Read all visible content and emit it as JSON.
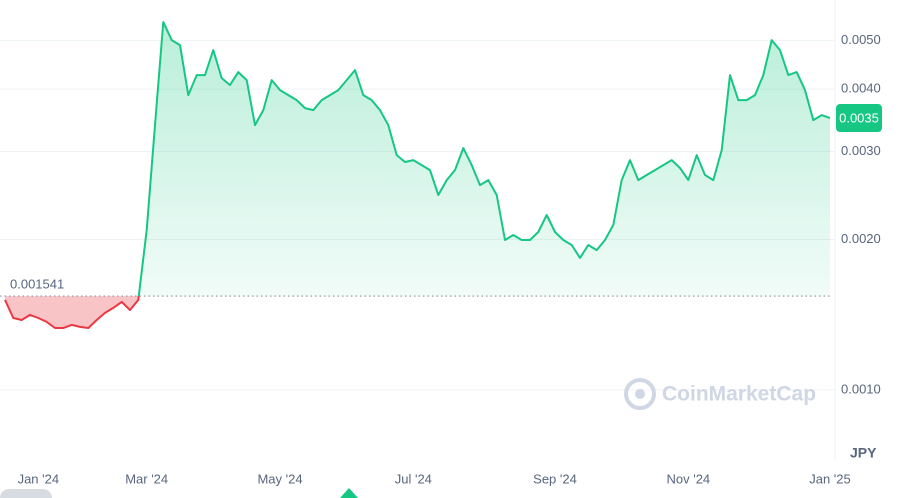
{
  "chart_data": {
    "type": "line",
    "categories": [
      null,
      null,
      null,
      null,
      "Jan '24",
      null,
      null,
      null,
      null,
      null,
      null,
      null,
      null,
      null,
      null,
      null,
      null,
      "Mar '24",
      null,
      null,
      null,
      null,
      null,
      null,
      null,
      null,
      null,
      null,
      null,
      null,
      null,
      null,
      null,
      "May '24",
      null,
      null,
      null,
      null,
      null,
      null,
      null,
      null,
      null,
      null,
      null,
      null,
      null,
      null,
      null,
      "Jul '24",
      null,
      null,
      null,
      null,
      null,
      null,
      null,
      null,
      null,
      null,
      null,
      null,
      null,
      null,
      null,
      null,
      "Sep '24",
      null,
      null,
      null,
      null,
      null,
      null,
      null,
      null,
      null,
      null,
      null,
      null,
      null,
      null,
      null,
      "Nov '24",
      null,
      null,
      null,
      null,
      null,
      null,
      null,
      null,
      null,
      null,
      null,
      null,
      null,
      null,
      null,
      null,
      "Jan '25"
    ],
    "series": [
      {
        "color": "#16c784",
        "down_color": "#ea3943",
        "values": [
          0.001514,
          0.001393,
          0.00138,
          0.001413,
          0.001393,
          0.001368,
          0.00133,
          0.00133,
          0.001349,
          0.001337,
          0.00133,
          0.00138,
          0.001426,
          0.001459,
          0.0015,
          0.001445,
          0.001514,
          0.002089,
          0.003388,
          0.005445,
          0.005012,
          0.004898,
          0.00389,
          0.004266,
          0.004266,
          0.004786,
          0.004207,
          0.004074,
          0.004325,
          0.004169,
          0.003388,
          0.003631,
          0.004169,
          0.003981,
          0.00389,
          0.003802,
          0.003664,
          0.003631,
          0.003802,
          0.00389,
          0.003981,
          0.004169,
          0.004365,
          0.00389,
          0.003802,
          0.003631,
          0.003388,
          0.002951,
          0.002858,
          0.002884,
          0.002818,
          0.002754,
          0.002455,
          0.00263,
          0.002754,
          0.003048,
          0.002818,
          0.00257,
          0.00263,
          0.002455,
          0.001995,
          0.002042,
          0.001995,
          0.001995,
          0.00207,
          0.002239,
          0.00207,
          0.001995,
          0.00195,
          0.001837,
          0.00195,
          0.001905,
          0.001995,
          0.002138,
          0.00263,
          0.002884,
          0.00263,
          0.002692,
          0.002754,
          0.002818,
          0.002884,
          0.00278,
          0.00263,
          0.002951,
          0.002692,
          0.00263,
          0.00302,
          0.004266,
          0.003802,
          0.003802,
          0.00389,
          0.004266,
          0.005012,
          0.004786,
          0.004266,
          0.004325,
          0.003981,
          0.003467,
          0.003548,
          0.0035
        ]
      }
    ],
    "baseline": 0.001541,
    "current_price": 0.0035,
    "currency": "JPY",
    "watermark": "CoinMarketCap",
    "log_scale": true,
    "grid": true,
    "ylim": [
      0.000724,
      0.00603
    ],
    "yticks": [
      {
        "value": 0.005,
        "label": "0.0050"
      },
      {
        "value": 0.004,
        "label": "0.0040"
      },
      {
        "value": 0.003,
        "label": "0.0030"
      },
      {
        "value": 0.002,
        "label": "0.0020"
      },
      {
        "value": 0.001,
        "label": "0.0010"
      }
    ]
  }
}
